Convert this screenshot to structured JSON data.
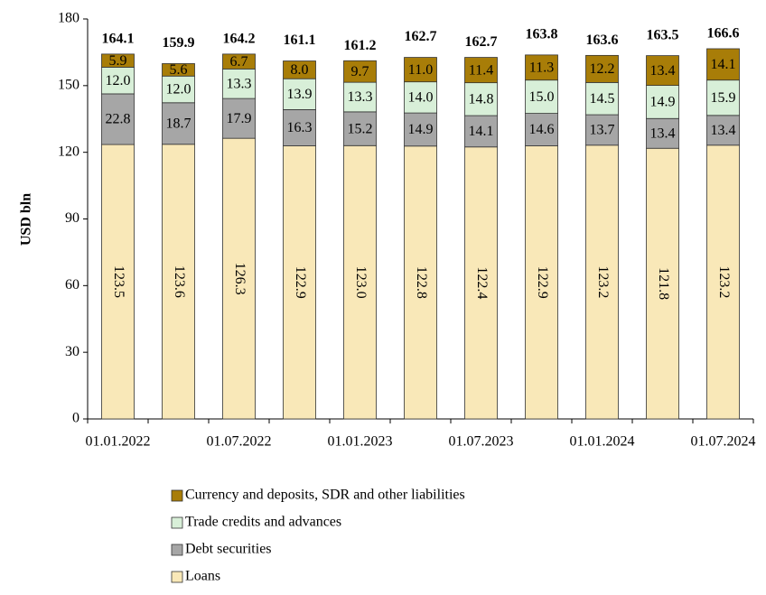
{
  "chart_data": {
    "type": "stacked_bar",
    "y_axis_label": "USD bln",
    "categories": [
      "01.01.2022",
      null,
      "01.07.2022",
      null,
      "01.01.2023",
      null,
      "01.07.2023",
      null,
      "01.01.2024",
      null,
      "01.07.2024"
    ],
    "series": [
      {
        "name": "Loans",
        "color": "#f9e8b8",
        "values": [
          123.5,
          123.6,
          126.3,
          122.9,
          123.0,
          122.8,
          122.4,
          122.9,
          123.2,
          121.8,
          123.2
        ],
        "value_labels": [
          "123.5",
          "123.6",
          "126.3",
          "122.9",
          "123.0",
          "122.8",
          "122.4",
          "122.9",
          "123.2",
          "121.8",
          "123.2"
        ]
      },
      {
        "name": "Debt securities",
        "color": "#a6a6a6",
        "values": [
          22.8,
          18.7,
          17.9,
          16.3,
          15.2,
          14.9,
          14.1,
          14.6,
          13.7,
          13.4,
          13.4
        ],
        "value_labels": [
          "22.8",
          "18.7",
          "17.9",
          "16.3",
          "15.2",
          "14.9",
          "14.1",
          "14.6",
          "13.7",
          "13.4",
          "13.4"
        ]
      },
      {
        "name": "Trade credits and advances",
        "color": "#d8efd8",
        "values": [
          12.0,
          12.0,
          13.3,
          13.9,
          13.3,
          14.0,
          14.8,
          15.0,
          14.5,
          14.9,
          15.9
        ],
        "value_labels": [
          "12.0",
          "12.0",
          "13.3",
          "13.9",
          "13.3",
          "14.0",
          "14.8",
          "15.0",
          "14.5",
          "14.9",
          "15.9"
        ]
      },
      {
        "name": "Currency and deposits, SDR and other liabilities",
        "color": "#a87d08",
        "values": [
          5.9,
          5.6,
          6.7,
          8.0,
          9.7,
          11.0,
          11.4,
          11.3,
          12.2,
          13.4,
          14.1
        ],
        "value_labels": [
          "5.9",
          "5.6",
          "6.7",
          "8.0",
          "9.7",
          "11.0",
          "11.4",
          "11.3",
          "12.2",
          "13.4",
          "14.1"
        ]
      }
    ],
    "totals": [
      164.1,
      159.9,
      164.2,
      161.1,
      161.2,
      162.7,
      162.7,
      163.8,
      163.6,
      163.5,
      166.6
    ],
    "ylim": [
      0,
      180
    ],
    "yticks": [
      0,
      30,
      60,
      90,
      120,
      150,
      180
    ]
  }
}
